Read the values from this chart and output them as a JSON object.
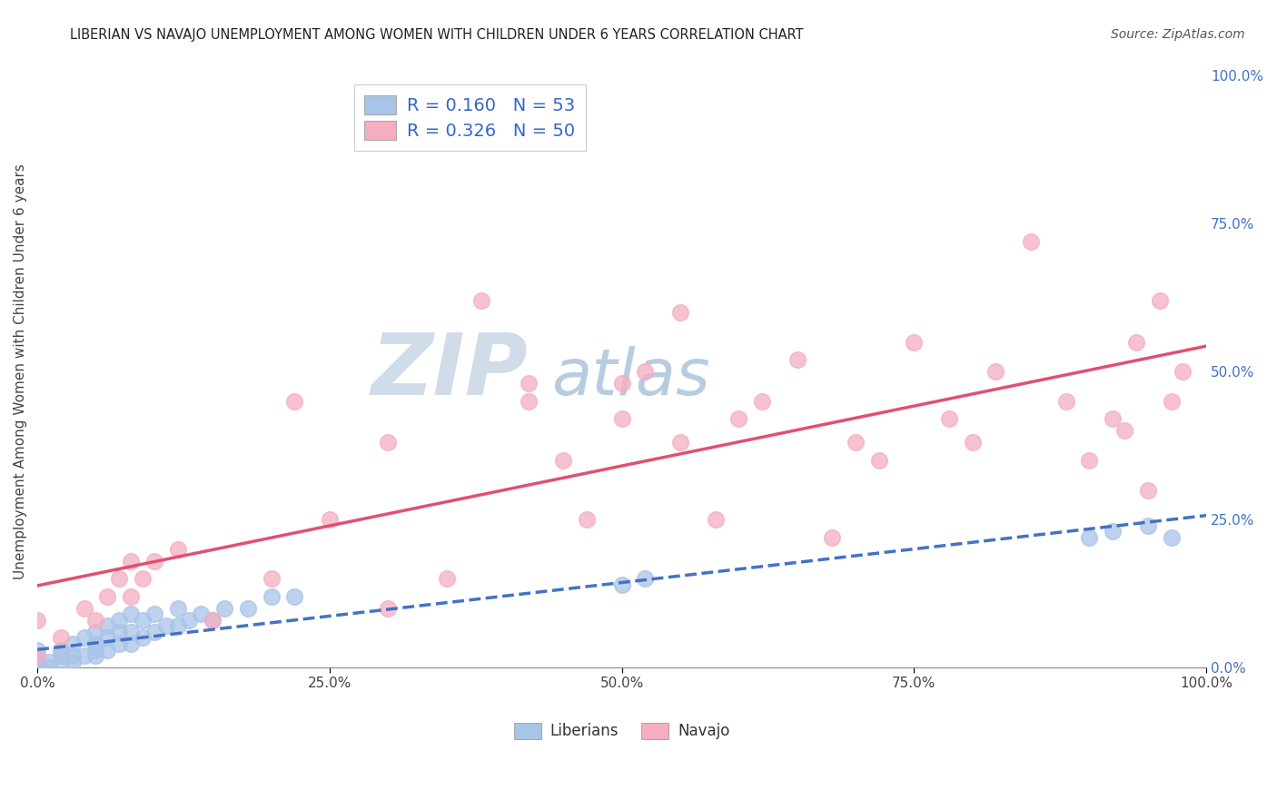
{
  "title": "LIBERIAN VS NAVAJO UNEMPLOYMENT AMONG WOMEN WITH CHILDREN UNDER 6 YEARS CORRELATION CHART",
  "source": "Source: ZipAtlas.com",
  "ylabel": "Unemployment Among Women with Children Under 6 years",
  "x_tick_labels": [
    "0.0%",
    "25.0%",
    "50.0%",
    "75.0%",
    "100.0%"
  ],
  "x_tick_vals": [
    0,
    0.25,
    0.5,
    0.75,
    1.0
  ],
  "y_tick_labels": [
    "0.0%",
    "25.0%",
    "50.0%",
    "75.0%",
    "100.0%"
  ],
  "y_tick_vals": [
    0,
    0.25,
    0.5,
    0.75,
    1.0
  ],
  "xlim": [
    0,
    1.0
  ],
  "ylim": [
    0,
    1.0
  ],
  "liberian_x": [
    0.0,
    0.0,
    0.0,
    0.0,
    0.0,
    0.0,
    0.0,
    0.0,
    0.0,
    0.0,
    0.01,
    0.01,
    0.02,
    0.02,
    0.02,
    0.03,
    0.03,
    0.03,
    0.04,
    0.04,
    0.05,
    0.05,
    0.05,
    0.05,
    0.06,
    0.06,
    0.06,
    0.07,
    0.07,
    0.07,
    0.08,
    0.08,
    0.08,
    0.09,
    0.09,
    0.1,
    0.1,
    0.11,
    0.12,
    0.12,
    0.13,
    0.14,
    0.15,
    0.16,
    0.18,
    0.2,
    0.22,
    0.5,
    0.52,
    0.9,
    0.92,
    0.95,
    0.97
  ],
  "liberian_y": [
    0.0,
    0.0,
    0.0,
    0.0,
    0.0,
    0.0,
    0.01,
    0.01,
    0.02,
    0.03,
    0.0,
    0.01,
    0.01,
    0.02,
    0.03,
    0.01,
    0.02,
    0.04,
    0.02,
    0.05,
    0.02,
    0.03,
    0.04,
    0.06,
    0.03,
    0.05,
    0.07,
    0.04,
    0.06,
    0.08,
    0.04,
    0.06,
    0.09,
    0.05,
    0.08,
    0.06,
    0.09,
    0.07,
    0.07,
    0.1,
    0.08,
    0.09,
    0.08,
    0.1,
    0.1,
    0.12,
    0.12,
    0.14,
    0.15,
    0.22,
    0.23,
    0.24,
    0.22
  ],
  "navajo_x": [
    0.0,
    0.0,
    0.02,
    0.04,
    0.05,
    0.06,
    0.07,
    0.08,
    0.09,
    0.1,
    0.12,
    0.15,
    0.2,
    0.22,
    0.25,
    0.3,
    0.35,
    0.38,
    0.42,
    0.45,
    0.47,
    0.5,
    0.52,
    0.55,
    0.58,
    0.6,
    0.62,
    0.65,
    0.68,
    0.7,
    0.72,
    0.75,
    0.78,
    0.8,
    0.82,
    0.85,
    0.88,
    0.9,
    0.92,
    0.93,
    0.94,
    0.95,
    0.96,
    0.97,
    0.98,
    0.5,
    0.55,
    0.3,
    0.42,
    0.08
  ],
  "navajo_y": [
    0.02,
    0.08,
    0.05,
    0.1,
    0.08,
    0.12,
    0.15,
    0.12,
    0.15,
    0.18,
    0.2,
    0.08,
    0.15,
    0.45,
    0.25,
    0.1,
    0.15,
    0.62,
    0.45,
    0.35,
    0.25,
    0.42,
    0.5,
    0.38,
    0.25,
    0.42,
    0.45,
    0.52,
    0.22,
    0.38,
    0.35,
    0.55,
    0.42,
    0.38,
    0.5,
    0.72,
    0.45,
    0.35,
    0.42,
    0.4,
    0.55,
    0.3,
    0.62,
    0.45,
    0.5,
    0.48,
    0.6,
    0.38,
    0.48,
    0.18
  ],
  "liberian_R": 0.16,
  "liberian_N": 53,
  "navajo_R": 0.326,
  "navajo_N": 50,
  "liberian_color": "#a8c4e8",
  "navajo_color": "#f5aec0",
  "liberian_line_color": "#4472c4",
  "navajo_line_color": "#e05070",
  "background_color": "#ffffff",
  "grid_color": "#cccccc",
  "watermark_zip_color": "#c8d8e8",
  "watermark_atlas_color": "#b8cce0"
}
